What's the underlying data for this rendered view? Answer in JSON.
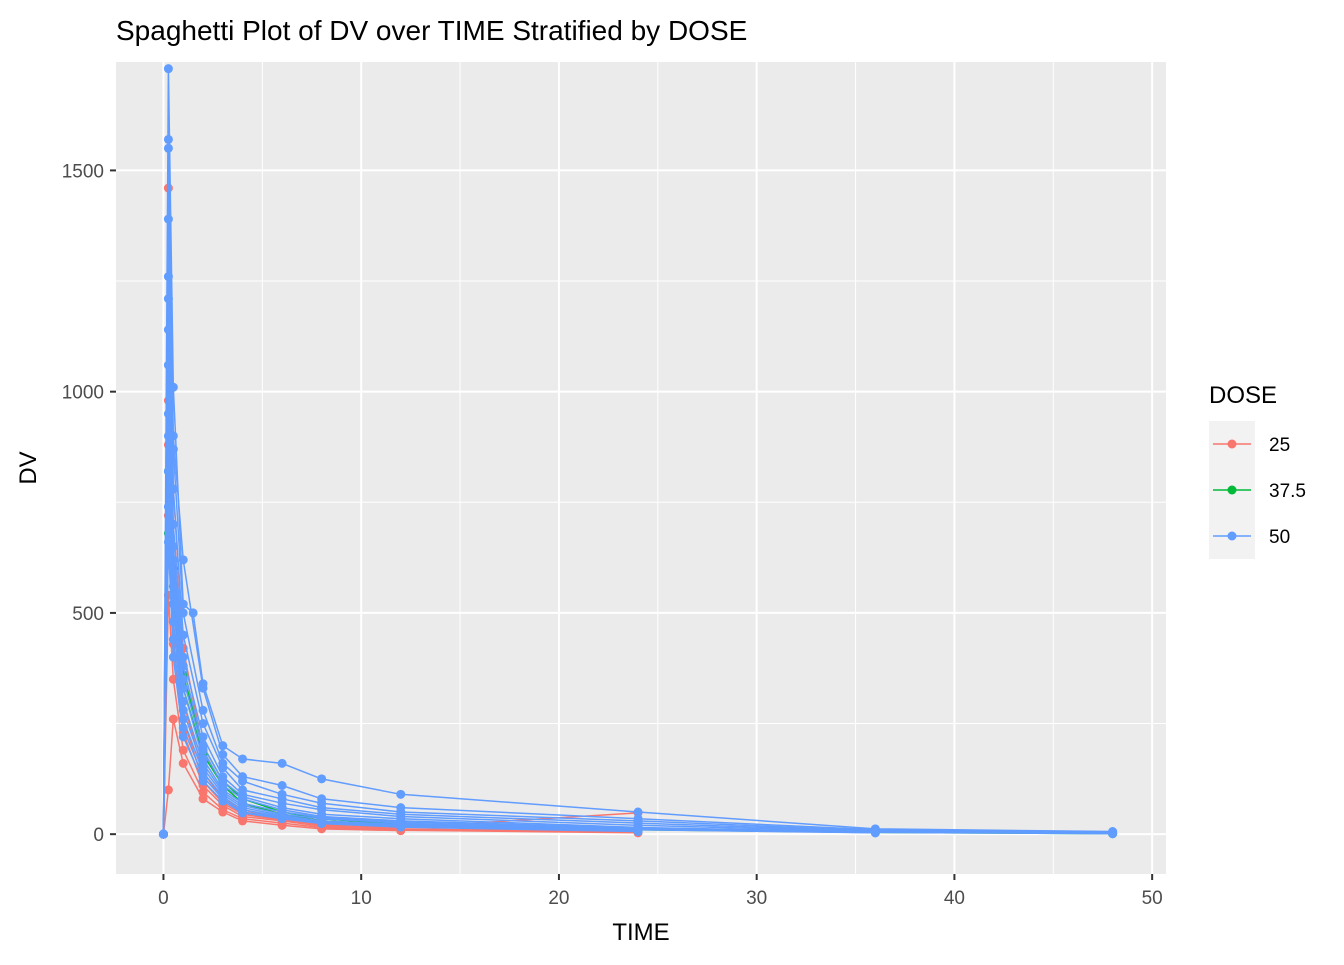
{
  "chart_data": {
    "type": "line",
    "title": "Spaghetti Plot of DV over TIME Stratified by DOSE",
    "xlabel": "TIME",
    "ylabel": "DV",
    "xlim": [
      -2.4,
      50.7
    ],
    "ylim": [
      -90,
      1745
    ],
    "x_ticks": [
      0,
      10,
      20,
      30,
      40,
      50
    ],
    "y_ticks": [
      0,
      500,
      1000,
      1500
    ],
    "grid": true,
    "legend": {
      "title": "DOSE",
      "position": "right",
      "entries": [
        {
          "label": "25",
          "color": "#F8766D"
        },
        {
          "label": "37.5",
          "color": "#00BA38"
        },
        {
          "label": "50",
          "color": "#619CFF"
        }
      ]
    },
    "series": [
      {
        "dose": "25",
        "color": "#F8766D",
        "x": [
          0,
          0.25,
          0.5,
          1,
          2,
          3,
          4,
          6,
          8,
          12,
          24
        ],
        "y": [
          0,
          1460,
          780,
          420,
          190,
          110,
          70,
          45,
          30,
          20,
          5
        ]
      },
      {
        "dose": "25",
        "color": "#F8766D",
        "x": [
          0,
          0.25,
          0.5,
          1,
          2,
          3,
          4,
          6,
          8,
          12,
          24
        ],
        "y": [
          0,
          980,
          560,
          300,
          140,
          80,
          55,
          35,
          20,
          15,
          48
        ]
      },
      {
        "dose": "25",
        "color": "#F8766D",
        "x": [
          0,
          0.25,
          0.5,
          1,
          2,
          3,
          4,
          6,
          8,
          12,
          24
        ],
        "y": [
          0,
          720,
          430,
          230,
          110,
          65,
          40,
          30,
          18,
          10,
          4
        ]
      },
      {
        "dose": "25",
        "color": "#F8766D",
        "x": [
          0,
          0.25,
          0.5,
          1,
          2,
          3,
          4,
          6,
          8,
          12,
          24
        ],
        "y": [
          0,
          540,
          350,
          190,
          95,
          55,
          35,
          25,
          15,
          9,
          3
        ]
      },
      {
        "dose": "25",
        "color": "#F8766D",
        "x": [
          0,
          0.25,
          0.5,
          1,
          2,
          3,
          4,
          6,
          8,
          12,
          24
        ],
        "y": [
          0,
          880,
          480,
          260,
          120,
          70,
          45,
          32,
          22,
          12,
          6
        ]
      },
      {
        "dose": "25",
        "color": "#F8766D",
        "x": [
          0,
          0.25,
          0.5,
          1,
          2,
          3,
          4,
          6,
          8,
          12
        ],
        "y": [
          0,
          100,
          260,
          160,
          80,
          50,
          30,
          20,
          12,
          8
        ]
      },
      {
        "dose": "37.5",
        "color": "#00BA38",
        "x": [
          0,
          0.25,
          0.5,
          1,
          2,
          3,
          4,
          6,
          8,
          12,
          24,
          36,
          48
        ],
        "y": [
          0,
          680,
          520,
          330,
          180,
          110,
          70,
          45,
          30,
          20,
          10,
          4,
          1
        ]
      },
      {
        "dose": "37.5",
        "color": "#00BA38",
        "x": [
          0,
          0.25,
          0.5,
          1,
          2,
          3,
          4,
          6,
          8,
          12,
          24,
          36,
          48
        ],
        "y": [
          0,
          820,
          600,
          360,
          200,
          120,
          80,
          50,
          35,
          22,
          12,
          5,
          2
        ]
      },
      {
        "dose": "50",
        "color": "#619CFF",
        "x": [
          0,
          0.25,
          0.5,
          1,
          1.5,
          2,
          3,
          4,
          6,
          8,
          12,
          24,
          36,
          48
        ],
        "y": [
          0,
          1730,
          1010,
          520,
          500,
          340,
          200,
          170,
          160,
          125,
          90,
          50,
          12,
          6
        ]
      },
      {
        "dose": "50",
        "color": "#619CFF",
        "x": [
          0,
          0.25,
          0.5,
          1,
          2,
          3,
          4,
          6,
          8,
          12,
          24,
          36,
          48
        ],
        "y": [
          0,
          1570,
          900,
          620,
          330,
          180,
          130,
          110,
          80,
          60,
          35,
          10,
          5
        ]
      },
      {
        "dose": "50",
        "color": "#619CFF",
        "x": [
          0,
          0.25,
          0.5,
          1,
          2,
          3,
          4,
          6,
          8,
          12,
          24,
          36,
          48
        ],
        "y": [
          0,
          1550,
          870,
          500,
          280,
          160,
          120,
          90,
          70,
          50,
          30,
          8,
          4
        ]
      },
      {
        "dose": "50",
        "color": "#619CFF",
        "x": [
          0,
          0.25,
          0.5,
          1,
          2,
          3,
          4,
          6,
          8,
          12,
          24,
          36,
          48
        ],
        "y": [
          0,
          1390,
          780,
          450,
          250,
          150,
          100,
          80,
          60,
          45,
          25,
          7,
          3
        ]
      },
      {
        "dose": "50",
        "color": "#619CFF",
        "x": [
          0,
          0.25,
          0.5,
          1,
          2,
          3,
          4,
          6,
          8,
          12,
          24,
          36,
          48
        ],
        "y": [
          0,
          1260,
          700,
          400,
          220,
          130,
          90,
          70,
          55,
          40,
          20,
          6,
          2
        ]
      },
      {
        "dose": "50",
        "color": "#619CFF",
        "x": [
          0,
          0.25,
          0.5,
          1,
          2,
          3,
          4,
          6,
          8,
          12,
          24,
          36,
          48
        ],
        "y": [
          0,
          1210,
          650,
          380,
          200,
          120,
          85,
          60,
          45,
          35,
          15,
          5,
          2
        ]
      },
      {
        "dose": "50",
        "color": "#619CFF",
        "x": [
          0,
          0.25,
          0.5,
          1,
          2,
          3,
          4,
          6,
          8,
          12,
          24,
          36,
          48
        ],
        "y": [
          0,
          1140,
          620,
          350,
          190,
          110,
          80,
          55,
          40,
          30,
          14,
          4,
          1
        ]
      },
      {
        "dose": "50",
        "color": "#619CFF",
        "x": [
          0,
          0.25,
          0.5,
          1,
          2,
          3,
          4,
          6,
          8,
          12,
          24,
          36
        ],
        "y": [
          0,
          1060,
          590,
          330,
          170,
          100,
          70,
          50,
          38,
          28,
          12,
          3
        ]
      },
      {
        "dose": "50",
        "color": "#619CFF",
        "x": [
          0,
          0.25,
          0.5,
          1,
          2,
          3,
          4,
          6,
          8,
          12,
          24,
          36
        ],
        "y": [
          0,
          950,
          560,
          300,
          160,
          95,
          65,
          45,
          35,
          25,
          10,
          3
        ]
      },
      {
        "dose": "50",
        "color": "#619CFF",
        "x": [
          0,
          0.25,
          0.5,
          1,
          2,
          3,
          4,
          6,
          8,
          12,
          24
        ],
        "y": [
          0,
          900,
          520,
          280,
          150,
          90,
          60,
          42,
          30,
          22,
          9
        ]
      },
      {
        "dose": "50",
        "color": "#619CFF",
        "x": [
          0,
          0.25,
          0.5,
          1,
          2,
          3,
          4,
          6,
          8,
          12,
          24
        ],
        "y": [
          0,
          820,
          480,
          260,
          140,
          85,
          55,
          40,
          28,
          20,
          8
        ]
      },
      {
        "dose": "50",
        "color": "#619CFF",
        "x": [
          0,
          0.25,
          0.5,
          1,
          2,
          3,
          4,
          6,
          8,
          12,
          24
        ],
        "y": [
          0,
          740,
          440,
          240,
          130,
          80,
          50,
          38,
          26,
          18,
          7
        ]
      },
      {
        "dose": "50",
        "color": "#619CFF",
        "x": [
          0,
          0.25,
          0.5,
          1,
          2,
          3,
          4,
          6,
          8,
          12,
          24
        ],
        "y": [
          0,
          660,
          400,
          220,
          120,
          75,
          48,
          35,
          24,
          16,
          6
        ]
      }
    ]
  }
}
